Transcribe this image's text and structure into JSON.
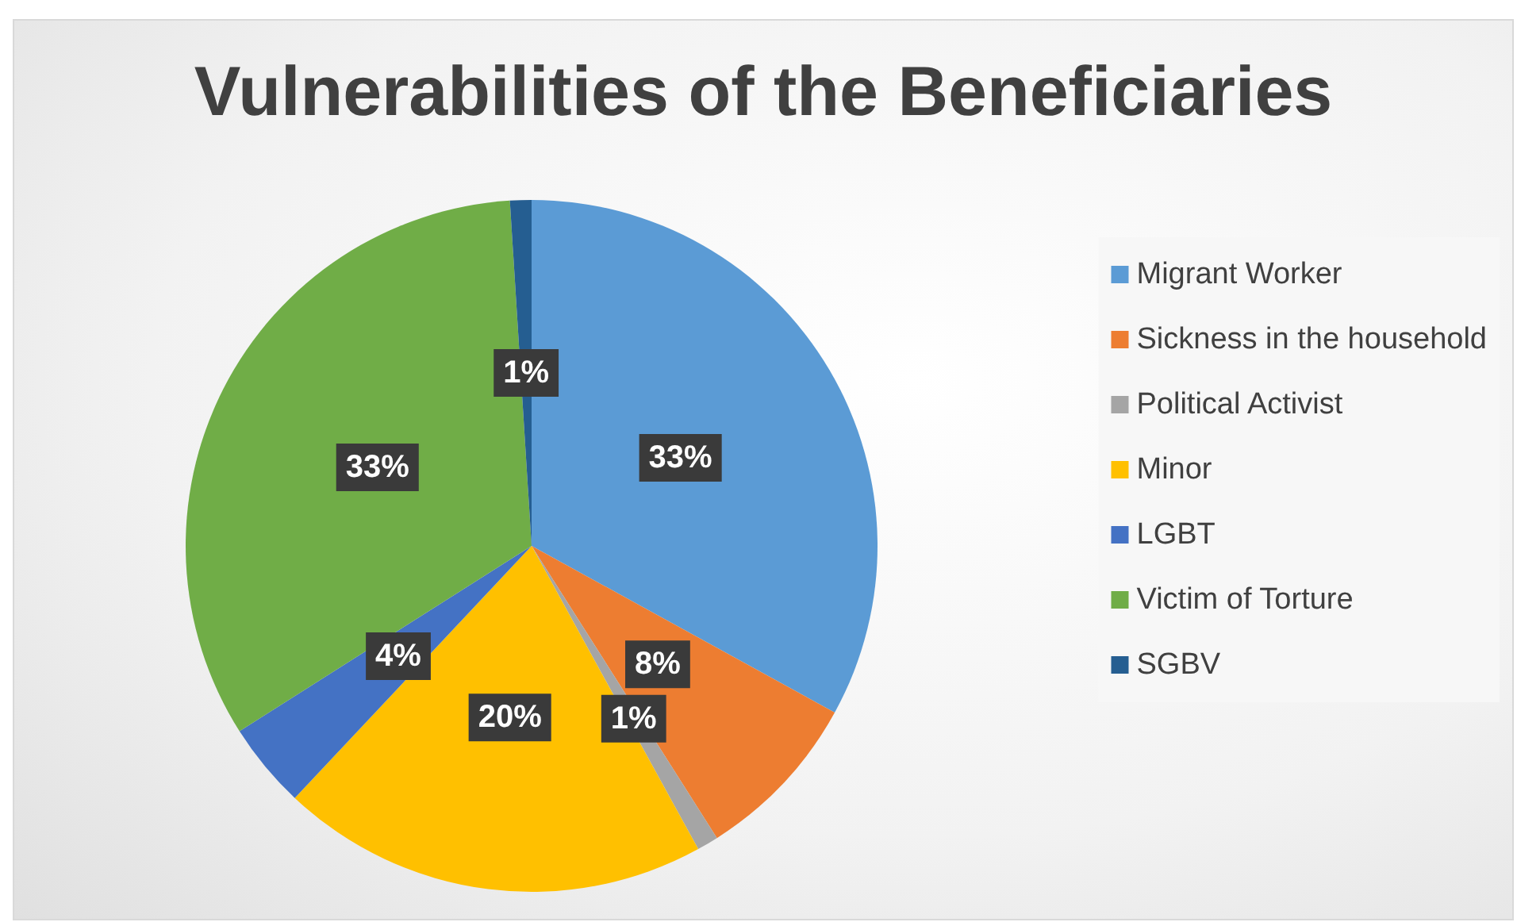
{
  "chart_data": {
    "type": "pie",
    "title": "Vulnerabilities of the Beneficiaries",
    "categories": [
      "Migrant Worker",
      "Sickness in the household",
      "Political Activist",
      "Minor",
      "LGBT",
      "Victim of Torture",
      "SGBV"
    ],
    "values": [
      33,
      8,
      1,
      20,
      4,
      33,
      1
    ],
    "colors": [
      "#5b9bd5",
      "#ed7d31",
      "#a5a5a5",
      "#ffc000",
      "#4472c4",
      "#70ad47",
      "#255e91"
    ],
    "value_labels": [
      "33%",
      "8%",
      "1%",
      "20%",
      "4%",
      "33%",
      "1%"
    ],
    "legend": "right"
  }
}
